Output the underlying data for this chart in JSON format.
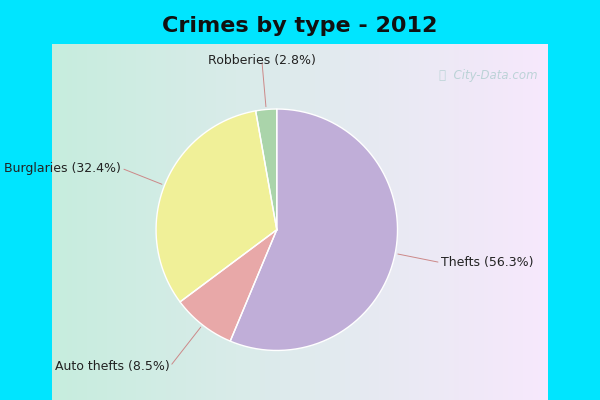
{
  "title": "Crimes by type - 2012",
  "labels": [
    "Thefts (56.3%)",
    "Auto thefts (8.5%)",
    "Burglaries (32.4%)",
    "Robberies (2.8%)"
  ],
  "values": [
    56.3,
    8.5,
    32.4,
    2.8
  ],
  "colors": [
    "#c0aed8",
    "#e8a8a8",
    "#f0f098",
    "#aad4aa"
  ],
  "startangle": 90,
  "background_top": "#00e5ff",
  "title_fontsize": 16,
  "label_fontsize": 9,
  "watermark": "City-Data.com"
}
